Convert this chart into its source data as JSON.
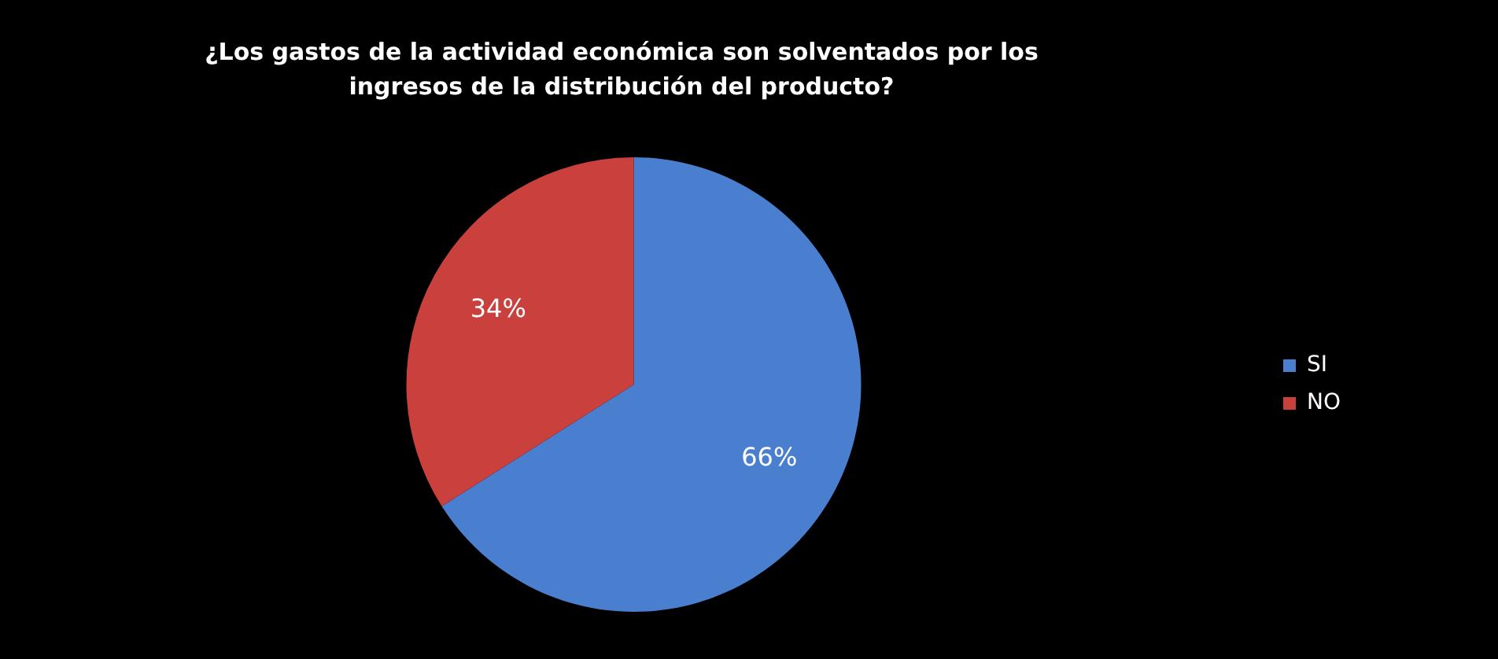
{
  "chart_data": {
    "type": "pie",
    "title": "¿Los gastos de la actividad económica son solventados por los ingresos de la distribución del producto?",
    "categories": [
      "SI",
      "NO"
    ],
    "values": [
      66,
      34
    ],
    "colors": [
      "#4a7fd0",
      "#c9403c"
    ],
    "value_labels": [
      "66%",
      "34%"
    ],
    "legend": "right"
  }
}
